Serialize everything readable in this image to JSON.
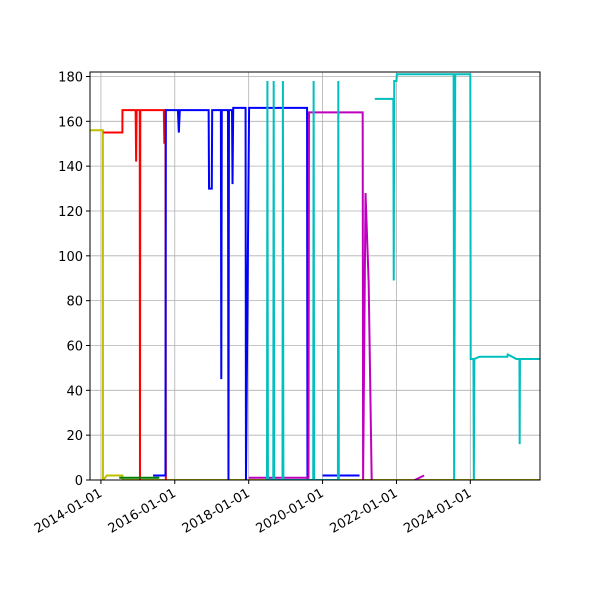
{
  "chart_data": {
    "type": "line",
    "grid": true,
    "xlim": [
      "2013-09-15",
      "2025-11-20"
    ],
    "ylim": [
      0,
      182
    ],
    "xticks": [
      "2014-01-01",
      "2016-01-01",
      "2018-01-01",
      "2020-01-01",
      "2022-01-01",
      "2024-01-01"
    ],
    "yticks": [
      0,
      20,
      40,
      60,
      80,
      100,
      120,
      140,
      160,
      180
    ],
    "series": [
      {
        "color": "#bfbf00",
        "x": [
          "2013-09-15",
          "2014-01-20",
          "2014-01-21",
          "2014-03-01",
          "2014-08-01",
          "2014-08-02",
          "2025-11-20"
        ],
        "values": [
          156,
          156,
          0,
          2,
          2,
          0,
          0
        ]
      },
      {
        "color": "#ff0000",
        "x": [
          "2014-01-25",
          "2014-08-01",
          "2014-08-02",
          "2014-12-10",
          "2014-12-15",
          "2014-12-20",
          "2015-01-20",
          "2015-01-22",
          "2015-01-25",
          "2015-09-15",
          "2015-09-20",
          "2015-09-25",
          "2015-10-01",
          "2015-10-05"
        ],
        "values": [
          155,
          155,
          165,
          165,
          142,
          165,
          165,
          0,
          165,
          165,
          150,
          165,
          165,
          0
        ]
      },
      {
        "color": "#008000",
        "x": [
          "2014-07-01",
          "2015-08-01"
        ],
        "values": [
          1,
          1
        ]
      },
      {
        "color": "#0000ff",
        "x": [
          "2015-06-01",
          "2015-10-01",
          "2015-10-05",
          "2016-02-01",
          "2016-02-10",
          "2016-02-20",
          "2016-12-01",
          "2016-12-05",
          "2017-01-01",
          "2017-01-05",
          "2017-04-01",
          "2017-04-05",
          "2017-04-10",
          "2017-06-10",
          "2017-06-15",
          "2017-06-20",
          "2017-07-20",
          "2017-07-25",
          "2017-08-01",
          "2017-12-01",
          "2017-12-05",
          "2018-01-05",
          "2019-08-01",
          "2019-08-05",
          "2019-09-01",
          "2020-01-01",
          "2021-01-01"
        ],
        "values": [
          2,
          2,
          165,
          165,
          155,
          165,
          165,
          130,
          130,
          165,
          165,
          45,
          165,
          165,
          0,
          165,
          165,
          132,
          166,
          166,
          0,
          166,
          166,
          0,
          null,
          2,
          2
        ]
      },
      {
        "color": "#bf00bf",
        "x": [
          "2018-01-01",
          "2019-08-15",
          "2019-08-20",
          "2021-02-01",
          "2021-02-05",
          "2021-03-01",
          "2021-04-01",
          "2021-05-01",
          "2021-06-01",
          "2022-07-01",
          "2022-10-01"
        ],
        "values": [
          1,
          1,
          164,
          164,
          0,
          128,
          88,
          0,
          null,
          0,
          2
        ]
      },
      {
        "color": "#00bfbf",
        "x": [
          "2018-07-01",
          "2018-07-05",
          "2018-07-10",
          "2018-09-01",
          "2018-09-05",
          "2018-09-10",
          "2018-12-01",
          "2018-12-05",
          "2018-12-10",
          "2019-10-01",
          "2019-10-05",
          "2019-10-10",
          "2020-06-01",
          "2020-06-05",
          "2020-06-10",
          "2021-01-01",
          "2021-06-01",
          "2021-12-01",
          "2021-12-05",
          "2021-12-10",
          "2022-01-01",
          "2022-01-05",
          "2023-07-20",
          "2023-07-25",
          "2023-08-05",
          "2024-01-01",
          "2024-01-05",
          "2024-02-01",
          "2024-02-05",
          "2024-02-10",
          "2024-04-01",
          "2025-01-01",
          "2025-01-05",
          "2025-04-01",
          "2025-05-01",
          "2025-05-03",
          "2025-05-06",
          "2025-11-20"
        ],
        "values": [
          0,
          178,
          0,
          0,
          178,
          0,
          0,
          178,
          0,
          0,
          178,
          0,
          0,
          178,
          0,
          null,
          170,
          170,
          89,
          178,
          178,
          181,
          181,
          0,
          181,
          181,
          54,
          54,
          0,
          54,
          55,
          55,
          56,
          54,
          54,
          16,
          54,
          54
        ]
      }
    ]
  }
}
